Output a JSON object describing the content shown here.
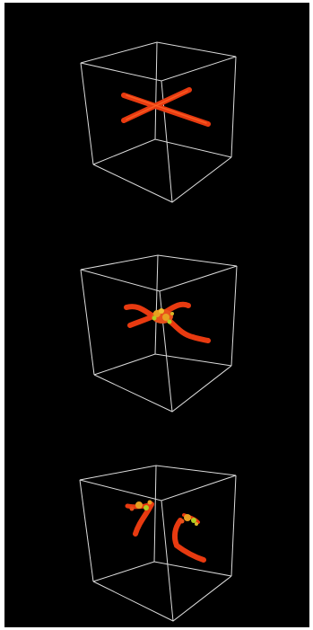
{
  "figure": {
    "background": "#000000",
    "frame_color": "#ffffff",
    "box_edge_color": "#e0e0e0",
    "tube_color": "#e83a10",
    "tube_highlight": "#ff6a2a",
    "blob_colors": [
      "#ff4a12",
      "#e8a020",
      "#b0d020"
    ],
    "panels": [
      {
        "id": "panel-1",
        "state": "crossed-tubes"
      },
      {
        "id": "panel-2",
        "state": "reconnecting-tubes"
      },
      {
        "id": "panel-3",
        "state": "separated-tubes"
      }
    ]
  }
}
